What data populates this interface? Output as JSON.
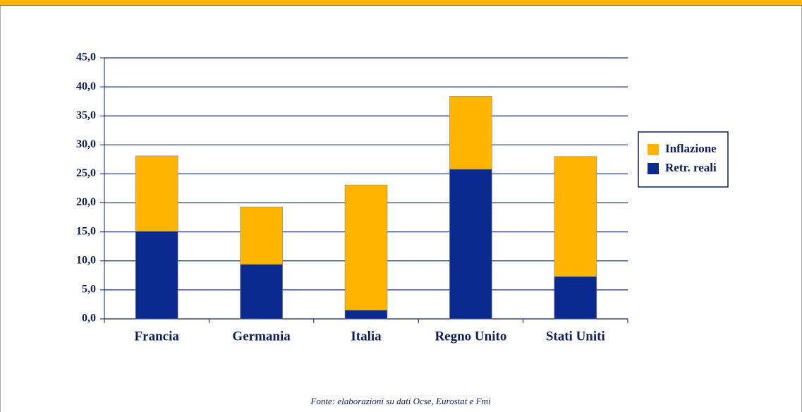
{
  "chart_data": {
    "type": "stacked-bar",
    "categories": [
      "Francia",
      "Germania",
      "Italia",
      "Regno Unito",
      "Stati Uniti"
    ],
    "series": [
      {
        "name": "Inflazione",
        "color": "#ffb400",
        "values": [
          13.0,
          9.9,
          21.6,
          12.6,
          20.7
        ]
      },
      {
        "name": "Retr. reali",
        "color": "#0b2a8f",
        "values": [
          15.1,
          9.4,
          1.5,
          25.8,
          7.3
        ]
      }
    ],
    "ylim": [
      0,
      45
    ],
    "yticks": [
      {
        "value": 0,
        "label": "0,0"
      },
      {
        "value": 5,
        "label": "5,0"
      },
      {
        "value": 10,
        "label": "10,0"
      },
      {
        "value": 15,
        "label": "15,0"
      },
      {
        "value": 20,
        "label": "20,0"
      },
      {
        "value": 25,
        "label": "25,0"
      },
      {
        "value": 30,
        "label": "30,0"
      },
      {
        "value": 35,
        "label": "35,0"
      },
      {
        "value": 40,
        "label": "40,0"
      },
      {
        "value": 45,
        "label": "45,0"
      }
    ],
    "grid": true,
    "legend": "right",
    "source": "Fonte: elaborazioni su dati Ocse, Eurostat e Fmi"
  }
}
